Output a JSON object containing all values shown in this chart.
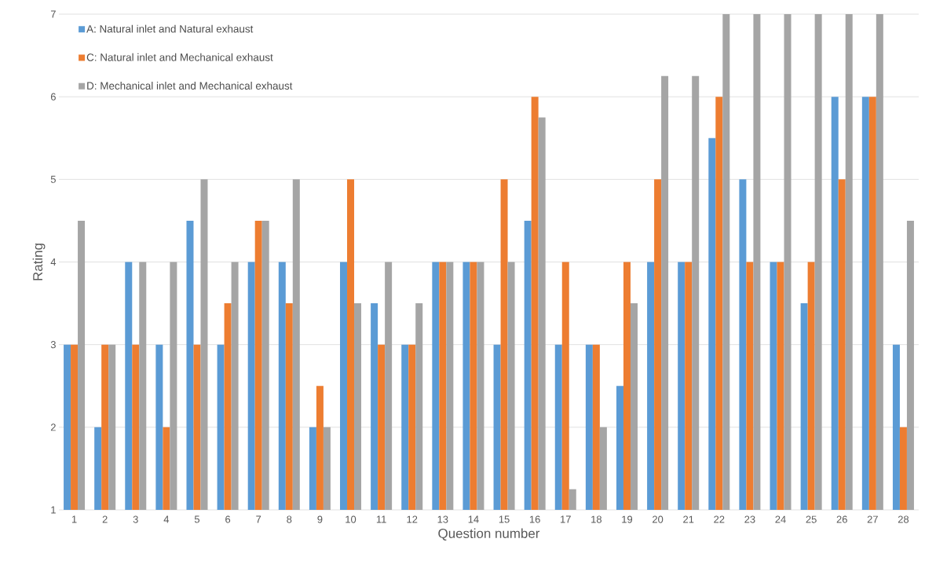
{
  "chart_data": {
    "type": "bar",
    "xlabel": "Question number",
    "ylabel": "Rating",
    "categories": [
      "1",
      "2",
      "3",
      "4",
      "5",
      "6",
      "7",
      "8",
      "9",
      "10",
      "11",
      "12",
      "13",
      "14",
      "15",
      "16",
      "17",
      "18",
      "19",
      "20",
      "21",
      "22",
      "23",
      "24",
      "25",
      "26",
      "27",
      "28"
    ],
    "series": [
      {
        "name": "A: Natural inlet and Natural exhaust",
        "color": "#5b9bd5",
        "values": [
          3,
          2,
          4,
          3,
          4.5,
          3,
          4,
          4,
          2,
          4,
          3.5,
          3,
          4,
          4,
          3,
          4.5,
          3,
          3,
          2.5,
          4,
          4,
          5.5,
          5,
          4,
          3.5,
          6,
          6,
          3
        ]
      },
      {
        "name": "C: Natural inlet and Mechanical exhaust",
        "color": "#ed7d31",
        "values": [
          3,
          3,
          3,
          2,
          3,
          3.5,
          4.5,
          3.5,
          2.5,
          5,
          3,
          3,
          4,
          4,
          5,
          6,
          4,
          3,
          4,
          5,
          4,
          6,
          4,
          4,
          4,
          5,
          6,
          2
        ]
      },
      {
        "name": "D: Mechanical inlet and Mechanical exhaust",
        "color": "#a5a5a5",
        "values": [
          4.5,
          3,
          4,
          4,
          5,
          4,
          4.5,
          5,
          2,
          3.5,
          4,
          3.5,
          4,
          4,
          4,
          5.75,
          1.25,
          2,
          3.5,
          6.25,
          6.25,
          7,
          7,
          7,
          7,
          7,
          7,
          4.5
        ]
      }
    ],
    "ylim": [
      1,
      7
    ],
    "yticks": [
      1,
      2,
      3,
      4,
      5,
      6,
      7
    ],
    "grid": "y",
    "legend": "top left"
  }
}
